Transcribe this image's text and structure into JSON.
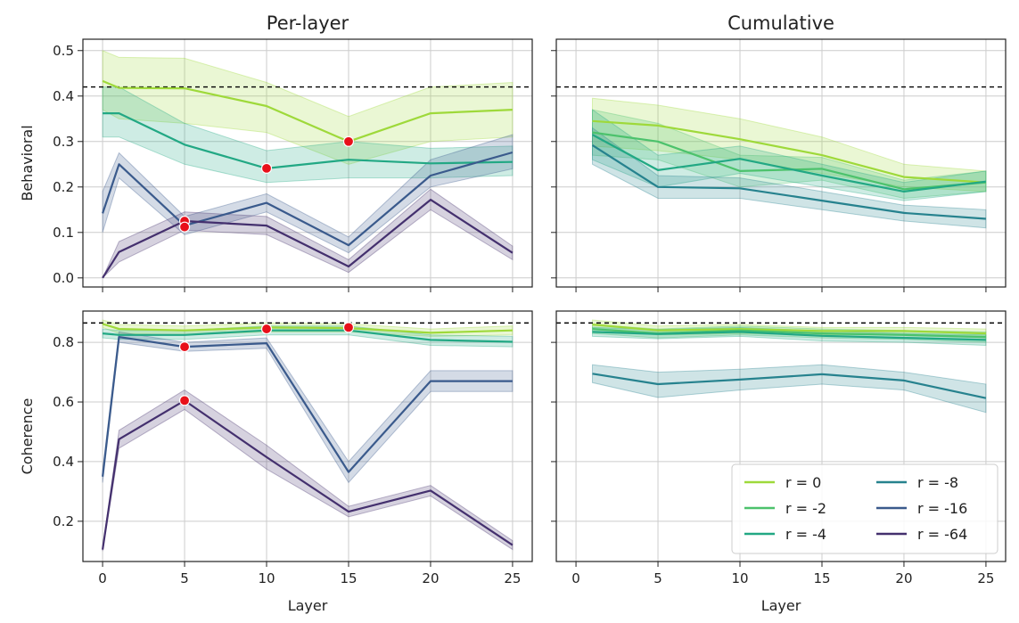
{
  "chart_data": [
    {
      "id": "p00",
      "type": "line",
      "title": "Per-layer",
      "xlabel": "",
      "ylabel": "Behavioral",
      "xlim": [
        -1.2,
        26.2
      ],
      "ylim": [
        -0.02,
        0.525
      ],
      "xticks": [
        0,
        5,
        10,
        15,
        20,
        25
      ],
      "xtick_labels": [],
      "yticks": [
        0.0,
        0.1,
        0.2,
        0.3,
        0.4,
        0.5
      ],
      "ytick_labels": [
        "0.0",
        "0.1",
        "0.2",
        "0.3",
        "0.4",
        "0.5"
      ],
      "baseline": 0.42,
      "series": [
        {
          "name": "r = 0",
          "color": "#9ed93a",
          "x": [
            0,
            1,
            5,
            10,
            15,
            20,
            25
          ],
          "y": [
            0.433,
            0.418,
            0.417,
            0.378,
            0.3,
            0.362,
            0.37
          ],
          "lo": [
            0.37,
            0.35,
            0.34,
            0.32,
            0.25,
            0.3,
            0.31
          ],
          "hi": [
            0.5,
            0.485,
            0.483,
            0.43,
            0.355,
            0.42,
            0.43
          ]
        },
        {
          "name": "r = -4",
          "color": "#22a884",
          "x": [
            0,
            1,
            5,
            10,
            15,
            20,
            25
          ],
          "y": [
            0.362,
            0.362,
            0.293,
            0.241,
            0.26,
            0.252,
            0.255
          ],
          "lo": [
            0.31,
            0.31,
            0.25,
            0.21,
            0.22,
            0.22,
            0.225
          ],
          "hi": [
            0.42,
            0.42,
            0.34,
            0.28,
            0.3,
            0.285,
            0.29
          ]
        },
        {
          "name": "r = -16",
          "color": "#3a5a8c",
          "x": [
            0,
            1,
            5,
            10,
            15,
            20,
            25
          ],
          "y": [
            0.142,
            0.25,
            0.115,
            0.165,
            0.072,
            0.225,
            0.276
          ],
          "lo": [
            0.1,
            0.22,
            0.095,
            0.145,
            0.055,
            0.2,
            0.24
          ],
          "hi": [
            0.19,
            0.275,
            0.135,
            0.185,
            0.09,
            0.26,
            0.315
          ]
        },
        {
          "name": "r = -64",
          "color": "#44306e",
          "x": [
            0,
            1,
            5,
            10,
            15,
            20,
            25
          ],
          "y": [
            0.0,
            0.057,
            0.125,
            0.115,
            0.025,
            0.172,
            0.055
          ],
          "lo": [
            0.0,
            0.035,
            0.105,
            0.095,
            0.012,
            0.15,
            0.04
          ],
          "hi": [
            0.0,
            0.08,
            0.145,
            0.135,
            0.04,
            0.195,
            0.07
          ]
        }
      ],
      "markers": [
        {
          "x": 15,
          "y": 0.3
        },
        {
          "x": 10,
          "y": 0.241
        },
        {
          "x": 5,
          "y": 0.125
        },
        {
          "x": 5,
          "y": 0.112
        }
      ]
    },
    {
      "id": "p01",
      "type": "line",
      "title": "Cumulative",
      "xlabel": "",
      "ylabel": "",
      "xlim": [
        -1.2,
        26.2
      ],
      "ylim": [
        -0.02,
        0.525
      ],
      "xticks": [
        0,
        5,
        10,
        15,
        20,
        25
      ],
      "xtick_labels": [],
      "yticks": [
        0.0,
        0.1,
        0.2,
        0.3,
        0.4,
        0.5
      ],
      "ytick_labels": [],
      "baseline": 0.42,
      "series": [
        {
          "name": "r = 0",
          "color": "#9ed93a",
          "x": [
            1,
            5,
            10,
            15,
            20,
            25
          ],
          "y": [
            0.345,
            0.335,
            0.305,
            0.27,
            0.222,
            0.21
          ],
          "lo": [
            0.29,
            0.28,
            0.26,
            0.23,
            0.2,
            0.19
          ],
          "hi": [
            0.395,
            0.38,
            0.35,
            0.31,
            0.25,
            0.235
          ]
        },
        {
          "name": "r = -2",
          "color": "#4cc26c",
          "x": [
            1,
            5,
            10,
            15,
            20,
            25
          ],
          "y": [
            0.32,
            0.3,
            0.235,
            0.24,
            0.195,
            0.21
          ],
          "lo": [
            0.27,
            0.26,
            0.2,
            0.215,
            0.175,
            0.19
          ],
          "hi": [
            0.37,
            0.34,
            0.27,
            0.265,
            0.215,
            0.235
          ]
        },
        {
          "name": "r = -4",
          "color": "#22a884",
          "x": [
            1,
            5,
            10,
            15,
            20,
            25
          ],
          "y": [
            0.315,
            0.237,
            0.262,
            0.225,
            0.19,
            0.212
          ],
          "lo": [
            0.26,
            0.2,
            0.23,
            0.2,
            0.17,
            0.19
          ],
          "hi": [
            0.37,
            0.27,
            0.29,
            0.25,
            0.21,
            0.235
          ]
        },
        {
          "name": "r = -8",
          "color": "#26828e",
          "x": [
            1,
            5,
            10,
            15,
            20,
            25
          ],
          "y": [
            0.292,
            0.2,
            0.197,
            0.17,
            0.143,
            0.13
          ],
          "lo": [
            0.25,
            0.175,
            0.175,
            0.15,
            0.125,
            0.11
          ],
          "hi": [
            0.33,
            0.225,
            0.22,
            0.19,
            0.16,
            0.15
          ]
        }
      ],
      "markers": []
    },
    {
      "id": "p10",
      "type": "line",
      "title": "",
      "xlabel": "Layer",
      "ylabel": "Coherence",
      "xlim": [
        -1.2,
        26.2
      ],
      "ylim": [
        0.065,
        0.905
      ],
      "xticks": [
        0,
        5,
        10,
        15,
        20,
        25
      ],
      "xtick_labels": [
        "0",
        "5",
        "10",
        "15",
        "20",
        "25"
      ],
      "yticks": [
        0.2,
        0.4,
        0.6,
        0.8
      ],
      "ytick_labels": [
        "0.2",
        "0.4",
        "0.6",
        "0.8"
      ],
      "baseline": 0.865,
      "series": [
        {
          "name": "r = 0",
          "color": "#9ed93a",
          "x": [
            0,
            1,
            5,
            10,
            15,
            20,
            25
          ],
          "y": [
            0.862,
            0.845,
            0.84,
            0.85,
            0.848,
            0.832,
            0.84
          ],
          "lo": [
            0.85,
            0.83,
            0.825,
            0.835,
            0.835,
            0.82,
            0.825
          ],
          "hi": [
            0.875,
            0.86,
            0.855,
            0.865,
            0.862,
            0.845,
            0.855
          ]
        },
        {
          "name": "r = -4",
          "color": "#22a884",
          "x": [
            0,
            1,
            5,
            10,
            15,
            20,
            25
          ],
          "y": [
            0.83,
            0.825,
            0.825,
            0.84,
            0.84,
            0.808,
            0.802
          ],
          "lo": [
            0.815,
            0.81,
            0.81,
            0.825,
            0.825,
            0.79,
            0.785
          ],
          "hi": [
            0.845,
            0.84,
            0.84,
            0.855,
            0.855,
            0.825,
            0.82
          ]
        },
        {
          "name": "r = -16",
          "color": "#3a5a8c",
          "x": [
            0,
            1,
            5,
            10,
            15,
            20,
            25
          ],
          "y": [
            0.35,
            0.818,
            0.785,
            0.797,
            0.365,
            0.67,
            0.67
          ],
          "lo": [
            0.33,
            0.8,
            0.77,
            0.78,
            0.33,
            0.635,
            0.635
          ],
          "hi": [
            0.37,
            0.835,
            0.8,
            0.815,
            0.4,
            0.705,
            0.705
          ]
        },
        {
          "name": "r = -64",
          "color": "#44306e",
          "x": [
            0,
            1,
            5,
            10,
            15,
            20,
            25
          ],
          "y": [
            0.105,
            0.475,
            0.605,
            0.415,
            0.232,
            0.303,
            0.12
          ],
          "lo": [
            0.1,
            0.445,
            0.575,
            0.375,
            0.215,
            0.285,
            0.105
          ],
          "hi": [
            0.11,
            0.505,
            0.64,
            0.455,
            0.25,
            0.32,
            0.135
          ]
        }
      ],
      "markers": [
        {
          "x": 5,
          "y": 0.785
        },
        {
          "x": 10,
          "y": 0.845
        },
        {
          "x": 15,
          "y": 0.85
        },
        {
          "x": 5,
          "y": 0.605
        }
      ]
    },
    {
      "id": "p11",
      "type": "line",
      "title": "",
      "xlabel": "Layer",
      "ylabel": "",
      "xlim": [
        -1.2,
        26.2
      ],
      "ylim": [
        0.065,
        0.905
      ],
      "xticks": [
        0,
        5,
        10,
        15,
        20,
        25
      ],
      "xtick_labels": [
        "0",
        "5",
        "10",
        "15",
        "20",
        "25"
      ],
      "yticks": [
        0.2,
        0.4,
        0.6,
        0.8
      ],
      "ytick_labels": [],
      "baseline": 0.865,
      "series": [
        {
          "name": "r = 0",
          "color": "#9ed93a",
          "x": [
            1,
            5,
            10,
            15,
            20,
            25
          ],
          "y": [
            0.86,
            0.84,
            0.845,
            0.838,
            0.838,
            0.83
          ],
          "lo": [
            0.845,
            0.825,
            0.83,
            0.825,
            0.825,
            0.815
          ],
          "hi": [
            0.875,
            0.855,
            0.86,
            0.85,
            0.85,
            0.845
          ]
        },
        {
          "name": "r = -2",
          "color": "#4cc26c",
          "x": [
            1,
            5,
            10,
            15,
            20,
            25
          ],
          "y": [
            0.845,
            0.83,
            0.84,
            0.83,
            0.825,
            0.818
          ],
          "lo": [
            0.83,
            0.815,
            0.825,
            0.815,
            0.81,
            0.8
          ],
          "hi": [
            0.86,
            0.845,
            0.855,
            0.845,
            0.84,
            0.835
          ]
        },
        {
          "name": "r = -4",
          "color": "#22a884",
          "x": [
            1,
            5,
            10,
            15,
            20,
            25
          ],
          "y": [
            0.835,
            0.828,
            0.835,
            0.822,
            0.815,
            0.808
          ],
          "lo": [
            0.82,
            0.812,
            0.82,
            0.805,
            0.8,
            0.79
          ],
          "hi": [
            0.85,
            0.843,
            0.85,
            0.838,
            0.83,
            0.825
          ]
        },
        {
          "name": "r = -8",
          "color": "#26828e",
          "x": [
            1,
            5,
            10,
            15,
            20,
            25
          ],
          "y": [
            0.695,
            0.66,
            0.675,
            0.693,
            0.672,
            0.613
          ],
          "lo": [
            0.665,
            0.615,
            0.64,
            0.66,
            0.64,
            0.565
          ],
          "hi": [
            0.725,
            0.7,
            0.71,
            0.725,
            0.7,
            0.66
          ]
        }
      ],
      "markers": []
    }
  ],
  "legend": {
    "position": "lower-right",
    "entries": [
      {
        "label": "r = 0",
        "color": "#9ed93a"
      },
      {
        "label": "r = -2",
        "color": "#4cc26c"
      },
      {
        "label": "r = -4",
        "color": "#22a884"
      },
      {
        "label": "r = -8",
        "color": "#26828e"
      },
      {
        "label": "r = -16",
        "color": "#3a5a8c"
      },
      {
        "label": "r = -64",
        "color": "#44306e"
      }
    ]
  },
  "colors": {
    "marker": "#e8101a",
    "baseline": "#000000",
    "grid": "#cccccc",
    "frame": "#222222"
  }
}
